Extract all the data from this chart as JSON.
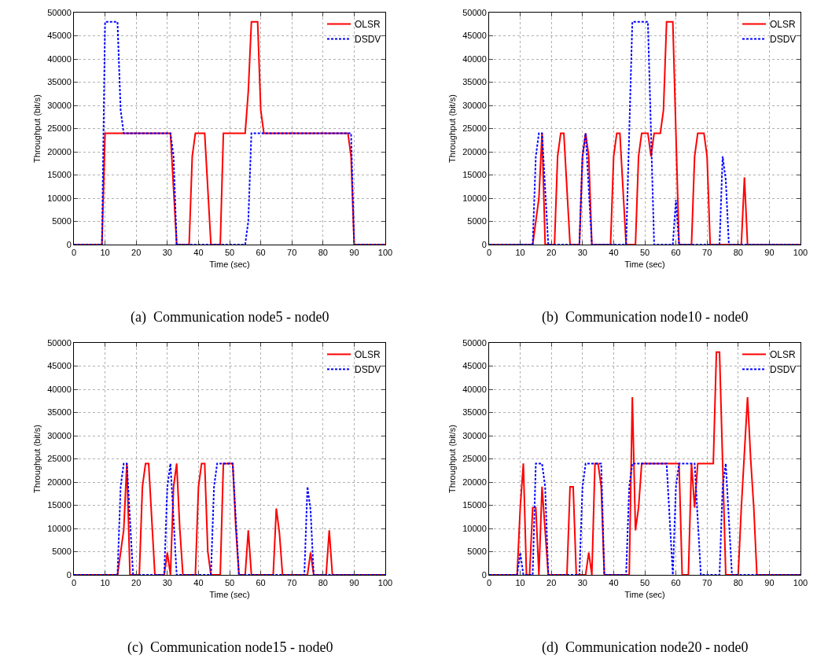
{
  "chart_data": [
    {
      "type": "line",
      "xlabel": "Time (sec)",
      "ylabel": "Throughput (bit/s)",
      "annotations": [
        "(a)  Communication node5 - node0"
      ],
      "xlim": [
        0,
        100
      ],
      "xticks": [
        0,
        10,
        20,
        30,
        40,
        50,
        60,
        70,
        80,
        90,
        100
      ],
      "ylim": [
        0,
        50000
      ],
      "yticks": [
        0,
        5000,
        10000,
        15000,
        20000,
        25000,
        30000,
        35000,
        40000,
        45000,
        50000
      ],
      "grid": true,
      "legend": "top right",
      "series": [
        {
          "name": "OLSR",
          "color": "#ff0000",
          "line_style": "solid",
          "x": [
            0,
            9,
            10,
            31,
            33,
            37,
            38,
            39,
            42,
            44,
            47,
            48,
            55,
            56,
            57,
            59,
            60,
            61,
            88,
            89,
            90,
            100
          ],
          "values": [
            0,
            0,
            24000,
            24000,
            0,
            0,
            19000,
            24000,
            24000,
            0,
            0,
            24000,
            24000,
            33000,
            48000,
            48000,
            29000,
            24000,
            24000,
            19000,
            0,
            0
          ]
        },
        {
          "name": "DSDV",
          "color": "#0000ff",
          "line_style": "dashed",
          "x": [
            0,
            9,
            10,
            14,
            15,
            16,
            31,
            32,
            33,
            55,
            56,
            57,
            89,
            90,
            100
          ],
          "values": [
            0,
            0,
            48000,
            48000,
            29000,
            24000,
            24000,
            19000,
            0,
            0,
            5000,
            24000,
            24000,
            0,
            0
          ]
        }
      ]
    },
    {
      "type": "line",
      "xlabel": "Time (sec)",
      "ylabel": "Throughput (bit/s)",
      "annotations": [
        "(b)  Communication node10 - node0"
      ],
      "xlim": [
        0,
        100
      ],
      "xticks": [
        0,
        10,
        20,
        30,
        40,
        50,
        60,
        70,
        80,
        90,
        100
      ],
      "ylim": [
        0,
        50000
      ],
      "yticks": [
        0,
        5000,
        10000,
        15000,
        20000,
        25000,
        30000,
        35000,
        40000,
        45000,
        50000
      ],
      "grid": true,
      "legend": "top right",
      "series": [
        {
          "name": "OLSR",
          "color": "#ff0000",
          "line_style": "solid",
          "x": [
            0,
            14,
            16,
            17,
            18,
            21,
            22,
            23,
            24,
            26,
            29,
            30,
            31,
            32,
            33,
            39,
            40,
            41,
            42,
            44,
            47,
            48,
            49,
            51,
            52,
            53,
            55,
            56,
            57,
            59,
            61,
            65,
            66,
            67,
            69,
            70,
            71,
            81,
            82,
            83,
            100
          ],
          "values": [
            0,
            0,
            10000,
            24000,
            0,
            0,
            19000,
            24000,
            24000,
            0,
            0,
            19000,
            24000,
            19000,
            0,
            0,
            19000,
            24000,
            24000,
            0,
            0,
            19000,
            24000,
            24000,
            19000,
            24000,
            24000,
            29000,
            48000,
            48000,
            0,
            0,
            19000,
            24000,
            24000,
            19000,
            0,
            0,
            14500,
            0,
            0
          ]
        },
        {
          "name": "DSDV",
          "color": "#0000ff",
          "line_style": "dashed",
          "x": [
            0,
            14,
            15,
            16,
            17,
            19,
            29,
            30,
            31,
            33,
            44,
            45,
            46,
            51,
            53,
            59,
            60,
            61,
            74,
            75,
            76,
            77,
            100
          ],
          "values": [
            0,
            0,
            19000,
            24000,
            24000,
            0,
            0,
            19000,
            24000,
            0,
            0,
            24000,
            48000,
            48000,
            0,
            0,
            9600,
            0,
            0,
            19000,
            14000,
            0,
            0
          ]
        }
      ]
    },
    {
      "type": "line",
      "xlabel": "Time (sec)",
      "ylabel": "Throughput (bit/s)",
      "annotations": [
        "(c)  Communication node15 - node0"
      ],
      "xlim": [
        0,
        100
      ],
      "xticks": [
        0,
        10,
        20,
        30,
        40,
        50,
        60,
        70,
        80,
        90,
        100
      ],
      "ylim": [
        0,
        50000
      ],
      "yticks": [
        0,
        5000,
        10000,
        15000,
        20000,
        25000,
        30000,
        35000,
        40000,
        45000,
        50000
      ],
      "grid": true,
      "legend": "top right",
      "series": [
        {
          "name": "OLSR",
          "color": "#ff0000",
          "line_style": "solid",
          "x": [
            0,
            14,
            16,
            17,
            18,
            21,
            22,
            23,
            24,
            26,
            29,
            30,
            31,
            32,
            33,
            34,
            35,
            39,
            40,
            41,
            42,
            43,
            44,
            47,
            48,
            51,
            52,
            53,
            55,
            56,
            57,
            64,
            65,
            66,
            67,
            75,
            76,
            77,
            81,
            82,
            83,
            100
          ],
          "values": [
            0,
            0,
            9700,
            24000,
            0,
            0,
            19000,
            24000,
            24000,
            0,
            0,
            4800,
            0,
            19000,
            24000,
            10000,
            0,
            0,
            19000,
            24000,
            24000,
            5000,
            0,
            0,
            24000,
            24000,
            10000,
            0,
            0,
            9600,
            0,
            0,
            14300,
            9000,
            0,
            0,
            4800,
            0,
            0,
            9600,
            0,
            0
          ]
        },
        {
          "name": "DSDV",
          "color": "#0000ff",
          "line_style": "dashed",
          "x": [
            0,
            14,
            15,
            16,
            17,
            19,
            29,
            30,
            31,
            33,
            44,
            45,
            46,
            51,
            53,
            74,
            75,
            76,
            77,
            100
          ],
          "values": [
            0,
            0,
            19000,
            24000,
            24000,
            0,
            0,
            19000,
            24000,
            0,
            0,
            19000,
            24000,
            24000,
            0,
            0,
            19000,
            14000,
            0,
            0
          ]
        }
      ]
    },
    {
      "type": "line",
      "xlabel": "Time (sec)",
      "ylabel": "Throughput (bit/s)",
      "annotations": [
        "(d)  Communication node20 - node0"
      ],
      "xlim": [
        0,
        100
      ],
      "xticks": [
        0,
        10,
        20,
        30,
        40,
        50,
        60,
        70,
        80,
        90,
        100
      ],
      "ylim": [
        0,
        50000
      ],
      "yticks": [
        0,
        5000,
        10000,
        15000,
        20000,
        25000,
        30000,
        35000,
        40000,
        45000,
        50000
      ],
      "grid": true,
      "legend": "top right",
      "series": [
        {
          "name": "OLSR",
          "color": "#ff0000",
          "line_style": "solid",
          "x": [
            0,
            9,
            10,
            11,
            12,
            13,
            14,
            15,
            16,
            17,
            18,
            19,
            25,
            26,
            27,
            28,
            31,
            32,
            33,
            34,
            35,
            36,
            37,
            45,
            46,
            47,
            48,
            49,
            61,
            62,
            64,
            65,
            66,
            67,
            72,
            73,
            74,
            76,
            80,
            81,
            83,
            84,
            85,
            86,
            100
          ],
          "values": [
            0,
            0,
            14500,
            24000,
            0,
            0,
            14500,
            14500,
            0,
            19000,
            9500,
            0,
            0,
            19000,
            19000,
            0,
            0,
            4800,
            0,
            24000,
            24000,
            19000,
            0,
            0,
            38300,
            9600,
            14500,
            24000,
            24000,
            0,
            0,
            24000,
            14500,
            24000,
            24000,
            48000,
            48000,
            0,
            0,
            14500,
            38300,
            25000,
            14500,
            0,
            0
          ]
        },
        {
          "name": "DSDV",
          "color": "#0000ff",
          "line_style": "dashed",
          "x": [
            0,
            9,
            10,
            11,
            14,
            15,
            17,
            18,
            19,
            29,
            30,
            31,
            36,
            37,
            44,
            45,
            46,
            57,
            59,
            60,
            61,
            66,
            68,
            74,
            75,
            76,
            78,
            100
          ],
          "values": [
            0,
            0,
            4800,
            0,
            0,
            24000,
            24000,
            19000,
            0,
            0,
            19000,
            24000,
            24000,
            0,
            0,
            19000,
            24000,
            24000,
            0,
            19000,
            24000,
            24000,
            0,
            0,
            19000,
            24000,
            0,
            0
          ]
        }
      ]
    }
  ]
}
